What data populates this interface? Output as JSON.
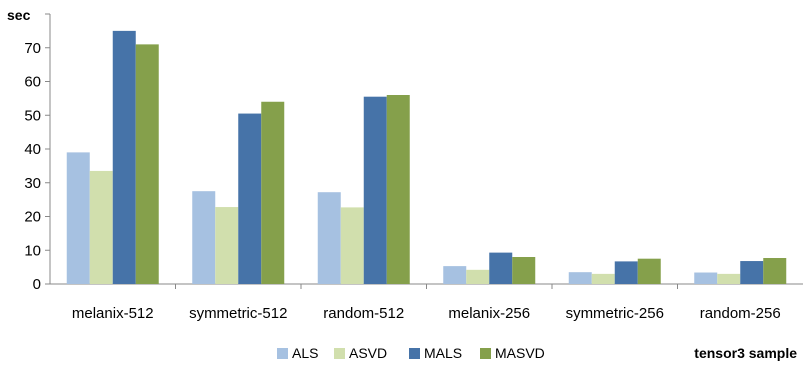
{
  "chart_data": {
    "type": "bar",
    "ylabel": "sec",
    "xlabel": "tensor3 sample",
    "ylim": [
      0,
      80
    ],
    "yticks": [
      0,
      10,
      20,
      30,
      40,
      50,
      60,
      70
    ],
    "grid": false,
    "legend_position": "bottom",
    "categories": [
      "melanix-512",
      "symmetric-512",
      "random-512",
      "melanix-256",
      "symmetric-256",
      "random-256"
    ],
    "series": [
      {
        "name": "ALS",
        "color": "#A6C1E1",
        "values": [
          39.0,
          27.5,
          27.2,
          5.3,
          3.5,
          3.4
        ]
      },
      {
        "name": "ASVD",
        "color": "#D1DFAD",
        "values": [
          33.5,
          22.8,
          22.7,
          4.2,
          3.0,
          3.0
        ]
      },
      {
        "name": "MALS",
        "color": "#4673A8",
        "values": [
          75.0,
          50.5,
          55.5,
          9.3,
          6.7,
          6.8
        ]
      },
      {
        "name": "MASVD",
        "color": "#85A04B",
        "values": [
          71.0,
          54.0,
          56.0,
          8.0,
          7.5,
          7.7
        ]
      }
    ]
  }
}
